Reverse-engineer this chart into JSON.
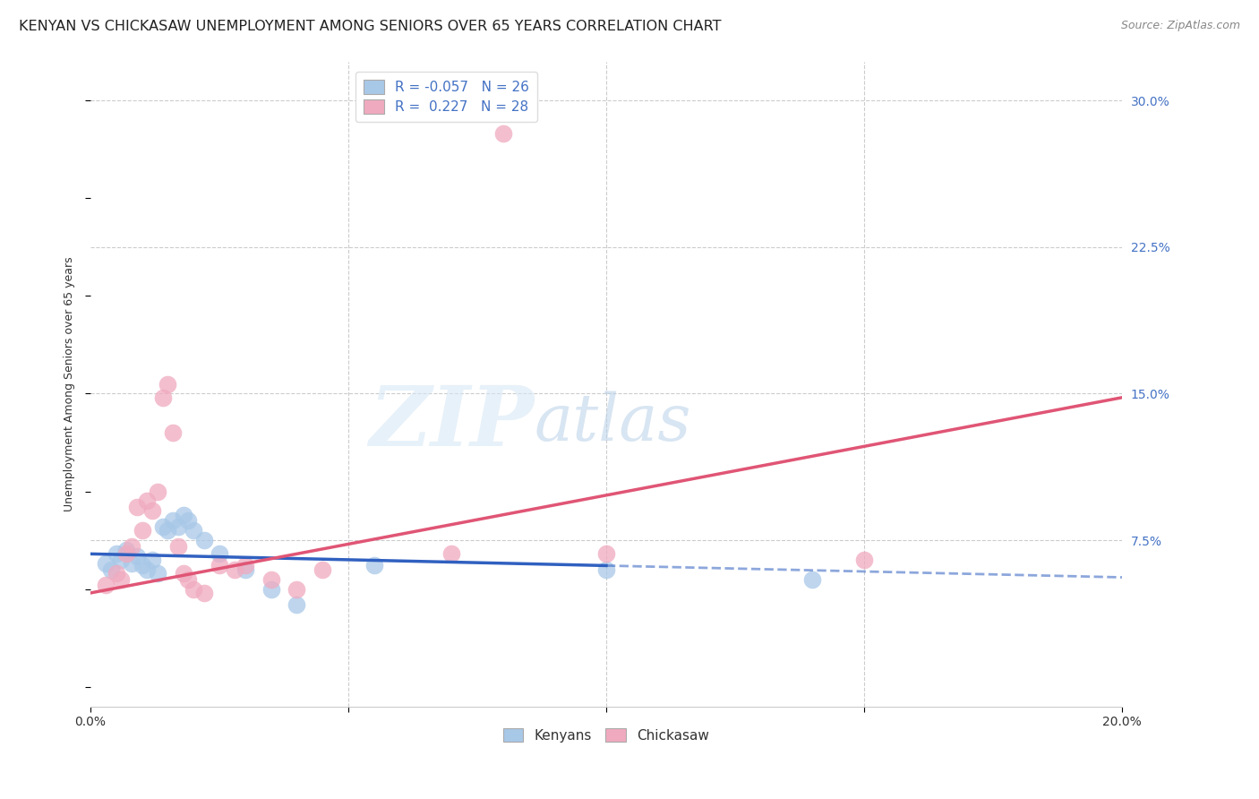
{
  "title": "KENYAN VS CHICKASAW UNEMPLOYMENT AMONG SENIORS OVER 65 YEARS CORRELATION CHART",
  "source": "Source: ZipAtlas.com",
  "ylabel": "Unemployment Among Seniors over 65 years",
  "xlim": [
    0.0,
    0.2
  ],
  "ylim": [
    -0.01,
    0.32
  ],
  "xticks": [
    0.0,
    0.05,
    0.1,
    0.15,
    0.2
  ],
  "xtick_labels": [
    "0.0%",
    "",
    "",
    "",
    "20.0%"
  ],
  "ytick_vals_right": [
    0.075,
    0.15,
    0.225,
    0.3
  ],
  "ytick_labels_right": [
    "7.5%",
    "15.0%",
    "22.5%",
    "30.0%"
  ],
  "legend_r_kenyan": "-0.057",
  "legend_n_kenyan": "26",
  "legend_r_chickasaw": "0.227",
  "legend_n_chickasaw": "28",
  "kenyan_color": "#a8c8e8",
  "chickasaw_color": "#f0aabf",
  "kenyan_line_color": "#3060c0",
  "chickasaw_line_color": "#e05575",
  "kenyan_scatter": [
    [
      0.003,
      0.063
    ],
    [
      0.004,
      0.06
    ],
    [
      0.005,
      0.068
    ],
    [
      0.006,
      0.065
    ],
    [
      0.007,
      0.07
    ],
    [
      0.008,
      0.063
    ],
    [
      0.009,
      0.067
    ],
    [
      0.01,
      0.062
    ],
    [
      0.011,
      0.06
    ],
    [
      0.012,
      0.065
    ],
    [
      0.013,
      0.058
    ],
    [
      0.014,
      0.082
    ],
    [
      0.015,
      0.08
    ],
    [
      0.016,
      0.085
    ],
    [
      0.017,
      0.082
    ],
    [
      0.018,
      0.088
    ],
    [
      0.019,
      0.085
    ],
    [
      0.02,
      0.08
    ],
    [
      0.022,
      0.075
    ],
    [
      0.025,
      0.068
    ],
    [
      0.03,
      0.06
    ],
    [
      0.035,
      0.05
    ],
    [
      0.04,
      0.042
    ],
    [
      0.055,
      0.062
    ],
    [
      0.1,
      0.06
    ],
    [
      0.14,
      0.055
    ]
  ],
  "chickasaw_scatter": [
    [
      0.003,
      0.052
    ],
    [
      0.005,
      0.058
    ],
    [
      0.006,
      0.055
    ],
    [
      0.007,
      0.068
    ],
    [
      0.008,
      0.072
    ],
    [
      0.009,
      0.092
    ],
    [
      0.01,
      0.08
    ],
    [
      0.011,
      0.095
    ],
    [
      0.012,
      0.09
    ],
    [
      0.013,
      0.1
    ],
    [
      0.014,
      0.148
    ],
    [
      0.015,
      0.155
    ],
    [
      0.016,
      0.13
    ],
    [
      0.017,
      0.072
    ],
    [
      0.018,
      0.058
    ],
    [
      0.019,
      0.055
    ],
    [
      0.02,
      0.05
    ],
    [
      0.022,
      0.048
    ],
    [
      0.025,
      0.062
    ],
    [
      0.028,
      0.06
    ],
    [
      0.03,
      0.062
    ],
    [
      0.035,
      0.055
    ],
    [
      0.04,
      0.05
    ],
    [
      0.045,
      0.06
    ],
    [
      0.07,
      0.068
    ],
    [
      0.1,
      0.068
    ],
    [
      0.15,
      0.065
    ],
    [
      0.08,
      0.283
    ]
  ],
  "kenyan_trend_x": [
    0.0,
    0.1,
    0.2
  ],
  "kenyan_trend_y": [
    0.068,
    0.062,
    0.056
  ],
  "kenyan_solid_to": 0.1,
  "chickasaw_trend_x": [
    0.0,
    0.2
  ],
  "chickasaw_trend_y": [
    0.048,
    0.148
  ],
  "chickasaw_solid_to": 0.2,
  "watermark_zip": "ZIP",
  "watermark_atlas": "atlas",
  "background_color": "#ffffff",
  "grid_color": "#cccccc",
  "marker_size": 200,
  "title_fontsize": 11.5,
  "source_fontsize": 9,
  "axis_label_fontsize": 9,
  "tick_fontsize": 10,
  "legend_fontsize": 11
}
